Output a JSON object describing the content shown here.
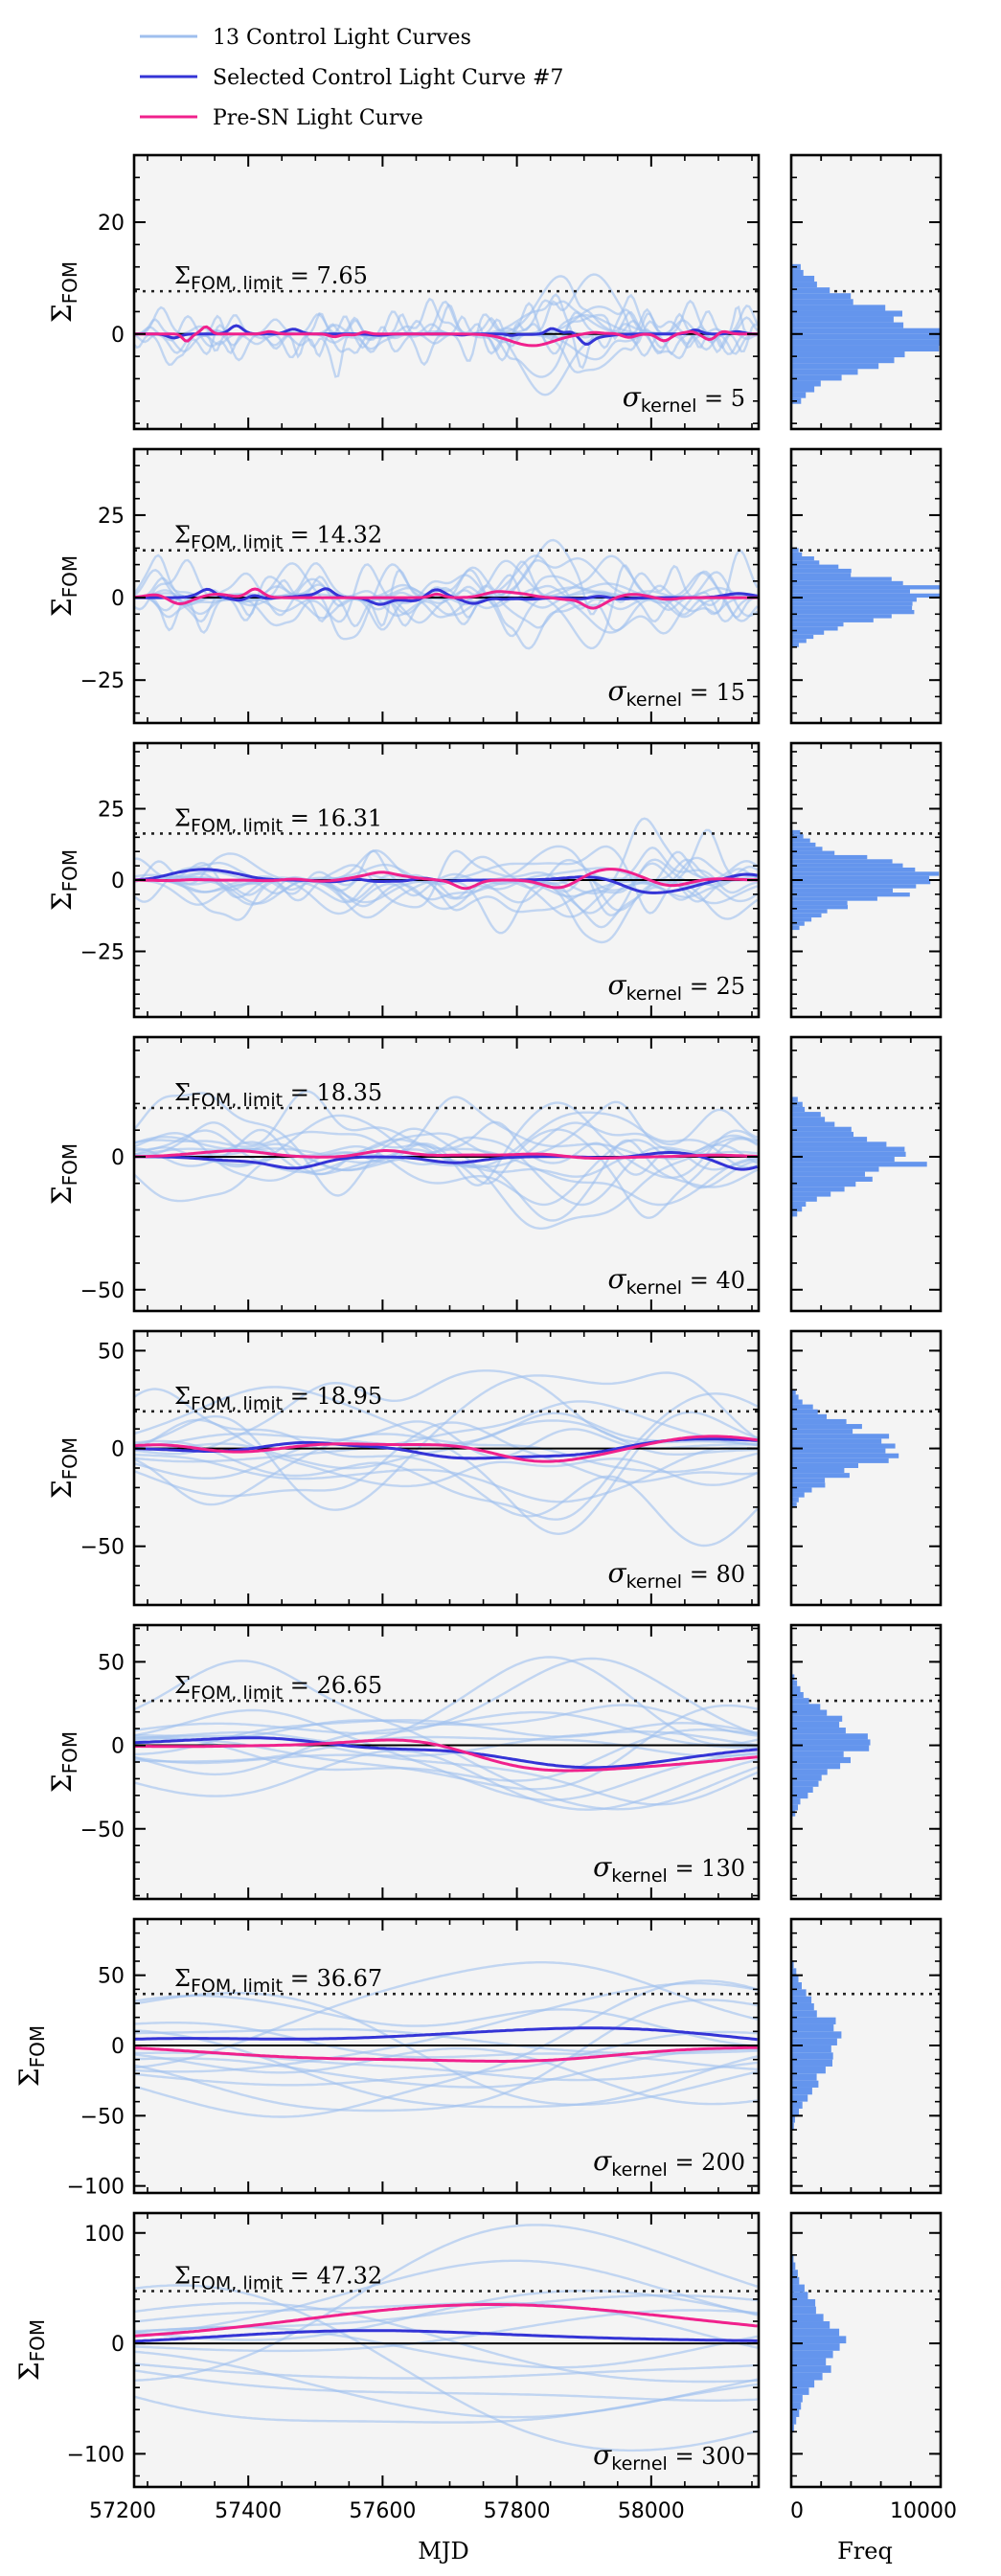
{
  "legend": {
    "position": "top-left",
    "entries": [
      {
        "label": "13 Control Light Curves",
        "color": "#9fbfee"
      },
      {
        "label": "Selected Control Light Curve #7",
        "color": "#3434d6"
      },
      {
        "label": "Pre-SN Light Curve",
        "color": "#f0218c"
      }
    ]
  },
  "colors": {
    "control": "#9fbfee",
    "selected": "#3434d6",
    "presn": "#f0218c",
    "hist": "#6495ed",
    "panel_bg": "#f4f4f4"
  },
  "labels": {
    "ylabel_main": "Σ",
    "ylabel_sub": "FOM",
    "xlabel_main": "MJD",
    "xlabel_hist": "Freq",
    "limit_main": "Σ",
    "limit_sub": "FOM, limit",
    "kernel_main": "σ",
    "kernel_sub": "kernel"
  },
  "chart_data": {
    "type": "line",
    "xlim": [
      57230,
      58160
    ],
    "x_ticks": [
      57200,
      57400,
      57600,
      57800,
      58000
    ],
    "hist_xlim": [
      0,
      10000
    ],
    "hist_ticks": [
      0,
      10000
    ],
    "grid": false,
    "panels": [
      {
        "sigma_kernel": "5",
        "limit": "7.65",
        "limit_value": 7.65,
        "ylim": [
          -17,
          32
        ],
        "yticks": [
          0,
          20
        ],
        "hist_peak": 9800,
        "hist_spread": 5
      },
      {
        "sigma_kernel": "15",
        "limit": "14.32",
        "limit_value": 14.32,
        "ylim": [
          -38,
          45
        ],
        "yticks": [
          -25,
          0,
          25
        ],
        "hist_peak": 9500,
        "hist_spread": 6
      },
      {
        "sigma_kernel": "25",
        "limit": "16.31",
        "limit_value": 16.31,
        "ylim": [
          -48,
          48
        ],
        "yticks": [
          -25,
          0,
          25
        ],
        "hist_peak": 8800,
        "hist_spread": 7
      },
      {
        "sigma_kernel": "40",
        "limit": "18.35",
        "limit_value": 18.35,
        "ylim": [
          -58,
          45
        ],
        "yticks": [
          -50,
          0
        ],
        "hist_peak": 8000,
        "hist_spread": 9
      },
      {
        "sigma_kernel": "80",
        "limit": "18.95",
        "limit_value": 18.95,
        "ylim": [
          -80,
          60
        ],
        "yticks": [
          -50,
          0,
          50
        ],
        "hist_peak": 6500,
        "hist_spread": 12
      },
      {
        "sigma_kernel": "130",
        "limit": "26.65",
        "limit_value": 26.65,
        "ylim": [
          -92,
          72
        ],
        "yticks": [
          -50,
          0,
          50
        ],
        "hist_peak": 4500,
        "hist_spread": 17
      },
      {
        "sigma_kernel": "200",
        "limit": "36.67",
        "limit_value": 36.67,
        "ylim": [
          -105,
          90
        ],
        "yticks": [
          -100,
          -50,
          0,
          50
        ],
        "hist_peak": 3300,
        "hist_spread": 24
      },
      {
        "sigma_kernel": "300",
        "limit": "47.32",
        "limit_value": 47.32,
        "ylim": [
          -130,
          118
        ],
        "yticks": [
          -100,
          0,
          100
        ],
        "hist_peak": 3200,
        "hist_spread": 32
      }
    ]
  }
}
